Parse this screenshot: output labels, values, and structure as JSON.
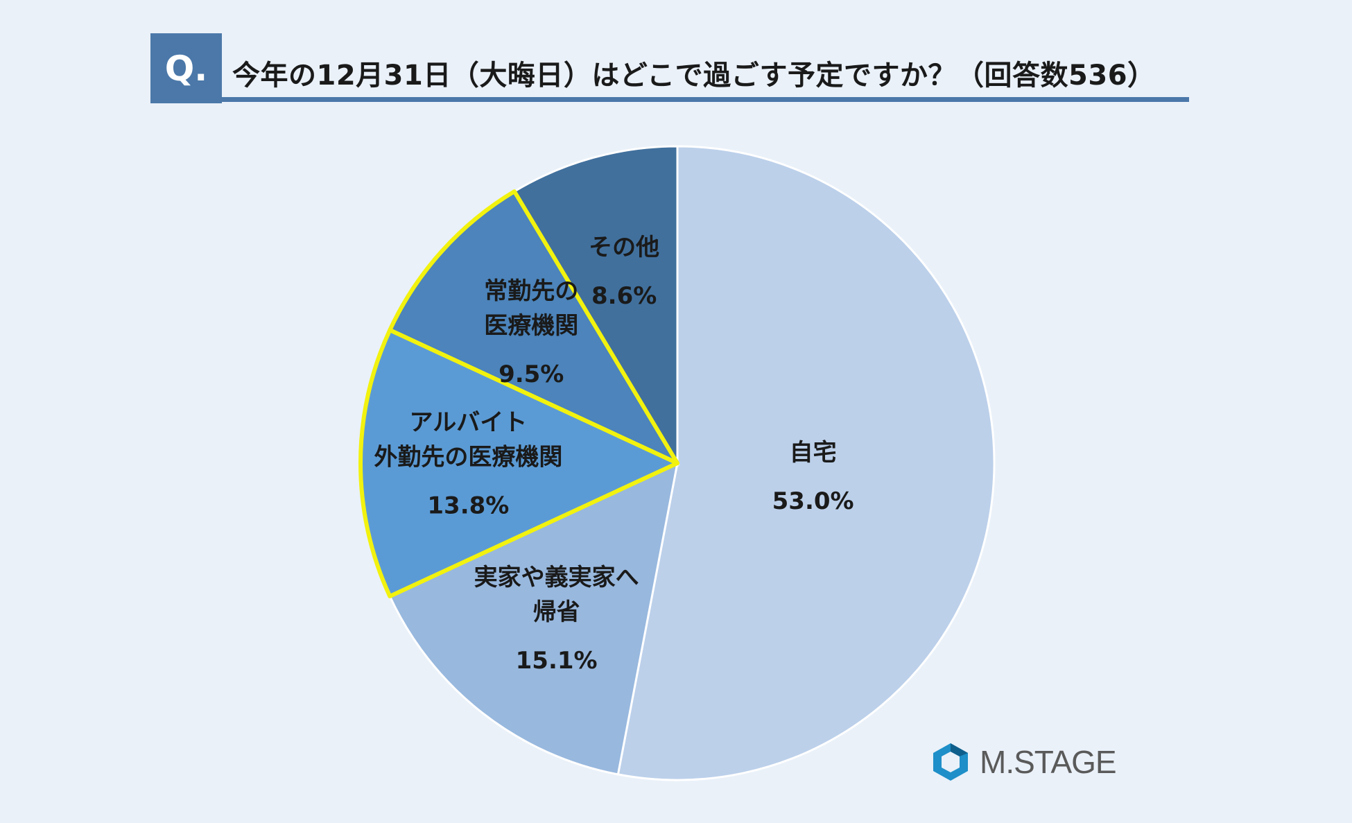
{
  "header": {
    "badge": "Q.",
    "title": "今年の12月31日（大晦日）はどこで過ごす予定ですか？（回答数536）"
  },
  "chart_data": {
    "type": "pie",
    "slices": [
      {
        "lines": [
          "自宅"
        ],
        "value": 53.0,
        "value_label": "53.0%",
        "color": "#bcd0ea",
        "highlight": false
      },
      {
        "lines": [
          "実家や義実家へ",
          "帰省"
        ],
        "value": 15.1,
        "value_label": "15.1%",
        "color": "#98b8de",
        "highlight": false
      },
      {
        "lines": [
          "アルバイト",
          "外勤先の医療機関"
        ],
        "value": 13.8,
        "value_label": "13.8%",
        "color": "#5b9bd5",
        "highlight": true
      },
      {
        "lines": [
          "常勤先の",
          "医療機関"
        ],
        "value": 9.5,
        "value_label": "9.5%",
        "color": "#4c84bb",
        "highlight": true
      },
      {
        "lines": [
          "その他"
        ],
        "value": 8.6,
        "value_label": "8.6%",
        "color": "#41709d",
        "highlight": false
      }
    ],
    "highlight_color": "#f2f20f"
  },
  "logo": {
    "text": "M.STAGE",
    "icon": "mstage-hexagon-icon"
  }
}
